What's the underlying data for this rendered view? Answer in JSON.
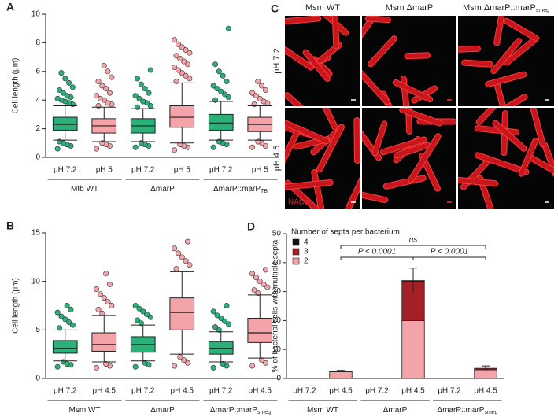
{
  "chart_data": [
    {
      "type": "box",
      "panel": "A",
      "y_label": "Cell length (μm)",
      "ylim": [
        0,
        10
      ],
      "yticks": [
        0,
        2,
        4,
        6,
        8,
        10
      ],
      "categories": [
        "pH 7.2",
        "pH 5",
        "pH 7.2",
        "pH 5",
        "pH 7.2",
        "pH 5"
      ],
      "groups": [
        {
          "text": "Mtb WT"
        },
        {
          "text": "ΔmarP"
        },
        {
          "text": "ΔmarP::marP",
          "sub": "TB"
        }
      ],
      "boxes": [
        {
          "color": "#2bb07a",
          "whisker_low": 1.2,
          "q1": 1.9,
          "median": 2.3,
          "q3": 2.8,
          "whisker_high": 3.6,
          "outliers": [
            0.6,
            0.8,
            0.9,
            1.0,
            1.1,
            3.7,
            3.8,
            3.9,
            4.0,
            4.1,
            4.2,
            4.3,
            4.5,
            4.7,
            4.9,
            5.2,
            5.5,
            5.9
          ]
        },
        {
          "color": "#f4a3a8",
          "whisker_low": 1.1,
          "q1": 1.7,
          "median": 2.2,
          "q3": 2.7,
          "whisker_high": 3.5,
          "outliers": [
            0.6,
            0.8,
            0.9,
            1.0,
            3.6,
            3.7,
            3.8,
            4.0,
            4.1,
            4.3,
            4.5,
            4.8,
            5.0,
            5.3,
            5.6,
            6.0,
            6.4
          ]
        },
        {
          "color": "#2bb07a",
          "whisker_low": 1.1,
          "q1": 1.7,
          "median": 2.2,
          "q3": 2.7,
          "whisker_high": 3.4,
          "outliers": [
            0.7,
            0.8,
            0.9,
            1.0,
            3.5,
            3.6,
            3.8,
            3.9,
            4.1,
            4.3,
            4.5,
            4.8,
            5.1,
            5.5,
            6.1
          ]
        },
        {
          "color": "#f4a3a8",
          "whisker_low": 1.0,
          "q1": 2.1,
          "median": 2.8,
          "q3": 3.6,
          "whisker_high": 5.2,
          "outliers": [
            0.5,
            0.7,
            0.8,
            0.9,
            5.3,
            5.5,
            5.7,
            5.9,
            6.1,
            6.3,
            6.5,
            6.7,
            6.9,
            7.1,
            7.3,
            7.5,
            7.7,
            7.9,
            8.2
          ]
        },
        {
          "color": "#2bb07a",
          "whisker_low": 1.2,
          "q1": 1.9,
          "median": 2.4,
          "q3": 3.0,
          "whisker_high": 3.9,
          "outliers": [
            0.7,
            0.9,
            1.0,
            1.1,
            4.0,
            4.2,
            4.4,
            4.6,
            4.8,
            5.0,
            5.3,
            5.7,
            6.0,
            6.5,
            9.0
          ]
        },
        {
          "color": "#f4a3a8",
          "whisker_low": 1.2,
          "q1": 1.8,
          "median": 2.3,
          "q3": 2.8,
          "whisker_high": 3.6,
          "outliers": [
            0.7,
            0.8,
            1.0,
            1.1,
            3.7,
            3.8,
            3.9,
            4.1,
            4.3,
            4.5,
            4.7,
            5.0,
            5.3
          ]
        }
      ]
    },
    {
      "type": "box",
      "panel": "B",
      "y_label": "Cell length (μm)",
      "ylim": [
        0,
        15
      ],
      "yticks": [
        0,
        5,
        10,
        15
      ],
      "categories": [
        "pH 7.2",
        "pH 4.5",
        "pH 7.2",
        "pH 4.5",
        "pH 7.2",
        "pH 4.5"
      ],
      "groups": [
        {
          "text": "Msm WT"
        },
        {
          "text": "ΔmarP"
        },
        {
          "text": "ΔmarP::marP",
          "sub": "smeg"
        }
      ],
      "boxes": [
        {
          "color": "#2bb07a",
          "whisker_low": 1.8,
          "q1": 2.6,
          "median": 3.1,
          "q3": 3.9,
          "whisker_high": 5.0,
          "outliers": [
            1.2,
            1.4,
            1.5,
            1.7,
            5.2,
            5.5,
            5.8,
            6.1,
            6.4,
            6.8,
            7.1,
            7.5
          ]
        },
        {
          "color": "#f4a3a8",
          "whisker_low": 1.7,
          "q1": 2.8,
          "median": 3.5,
          "q3": 4.7,
          "whisker_high": 6.5,
          "outliers": [
            1.1,
            1.3,
            1.5,
            6.7,
            7.1,
            7.5,
            7.9,
            8.3,
            8.7,
            9.2,
            9.7,
            10.8
          ]
        },
        {
          "color": "#2bb07a",
          "whisker_low": 1.8,
          "q1": 2.7,
          "median": 3.5,
          "q3": 4.3,
          "whisker_high": 5.5,
          "outliers": [
            1.2,
            1.4,
            1.6,
            5.7,
            6.0,
            6.3,
            6.6,
            6.9,
            7.2,
            7.5
          ]
        },
        {
          "color": "#f4a3a8",
          "whisker_low": 2.5,
          "q1": 5.0,
          "median": 6.8,
          "q3": 8.3,
          "whisker_high": 11.0,
          "outliers": [
            1.3,
            1.6,
            1.9,
            2.2,
            11.3,
            11.7,
            12.1,
            12.5,
            12.9,
            13.4,
            14.1
          ]
        },
        {
          "color": "#2bb07a",
          "whisker_low": 1.7,
          "q1": 2.5,
          "median": 3.1,
          "q3": 3.8,
          "whisker_high": 4.8,
          "outliers": [
            1.1,
            1.3,
            1.5,
            5.0,
            5.3,
            5.6,
            5.9,
            6.2,
            6.5,
            6.9,
            7.5
          ]
        },
        {
          "color": "#f4a3a8",
          "whisker_low": 2.1,
          "q1": 3.7,
          "median": 4.7,
          "q3": 6.2,
          "whisker_high": 8.6,
          "outliers": [
            1.3,
            1.6,
            1.9,
            8.8,
            9.1,
            9.4,
            9.7,
            10.0,
            10.4,
            10.8,
            11.2
          ]
        }
      ]
    },
    {
      "type": "stacked-bar",
      "panel": "D",
      "y_label": "% of bacterial cells with multiple septa",
      "ylim": [
        0,
        50
      ],
      "yticks": [
        0,
        10,
        20,
        30,
        40,
        50
      ],
      "categories": [
        "pH 7.2",
        "pH 4.5",
        "pH 7.2",
        "pH 4.5",
        "pH 7.2",
        "pH 4.5"
      ],
      "groups": [
        {
          "text": "Msm WT"
        },
        {
          "text": "ΔmarP"
        },
        {
          "text": "ΔmarP::marP",
          "sub": "smeg"
        }
      ],
      "legend_title": "Number of septa per bacterium",
      "series": [
        {
          "name": "2",
          "color": "#f4a3a8",
          "values": [
            0,
            2.3,
            0.1,
            20,
            0,
            3.0
          ]
        },
        {
          "name": "3",
          "color": "#a51f26",
          "values": [
            0,
            0.2,
            0,
            13.5,
            0,
            0.5
          ]
        },
        {
          "name": "4",
          "color": "#111111",
          "values": [
            0,
            0,
            0,
            0.3,
            0,
            0
          ]
        }
      ],
      "errors": [
        null,
        0.3,
        null,
        4.3,
        null,
        0.8
      ],
      "annotations": [
        "ns",
        "P < 0.0001",
        "P < 0.0001"
      ]
    }
  ],
  "image_panel": {
    "panel": "C",
    "columns": [
      "Msm WT",
      {
        "text": "Msm ΔmarP"
      },
      {
        "text": "Msm ΔmarP::marP",
        "sub": "smeg"
      }
    ],
    "rows": [
      "pH 7.2",
      "pH 4.5"
    ],
    "stain": "NADA"
  }
}
